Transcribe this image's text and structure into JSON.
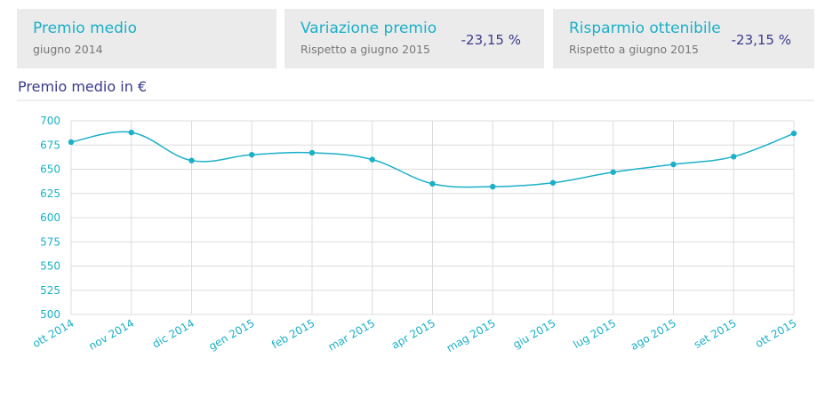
{
  "cards": [
    {
      "title": "Premio medio",
      "subtitle": "giugno 2014"
    },
    {
      "title": "Variazione premio",
      "subtitle": "Rispetto a giugno 2015",
      "value": "-23,15 %"
    },
    {
      "title": "Risparmio ottenibile",
      "subtitle": "Rispetto a giugno 2015",
      "value": "-23,15 %"
    }
  ],
  "chart_data": {
    "type": "line",
    "title": "Premio medio in €",
    "categories": [
      "ott 2014",
      "nov 2014",
      "dic 2014",
      "gen 2015",
      "feb 2015",
      "mar 2015",
      "apr 2015",
      "mag 2015",
      "giu 2015",
      "lug 2015",
      "ago 2015",
      "set 2015",
      "ott 2015"
    ],
    "series": [
      {
        "name": "Premio medio",
        "color": "#1ab0c8",
        "values": [
          678,
          688,
          659,
          665,
          667,
          660,
          635,
          632,
          636,
          647,
          655,
          663,
          687
        ]
      }
    ],
    "ylim": [
      500,
      700
    ],
    "yticks": [
      500,
      525,
      550,
      575,
      600,
      625,
      650,
      675,
      700
    ],
    "grid": true
  }
}
